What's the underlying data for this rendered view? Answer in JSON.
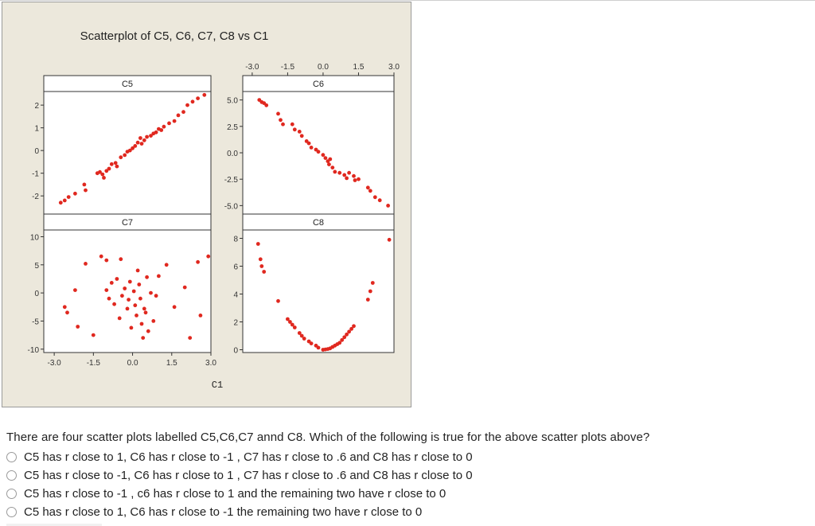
{
  "figure": {
    "title": "Scatterplot of C5, C6, C7, C8 vs C1",
    "x_axis_title": "C1"
  },
  "chart_data": {
    "type": "scatter",
    "title": "Scatterplot of C5, C6, C7, C8 vs C1",
    "xlabel": "C1",
    "x_ticks": [
      "-3.0",
      "-1.5",
      "0.0",
      "1.5",
      "3.0"
    ],
    "xlim": [
      -3.4,
      3.0
    ],
    "marker_color": "#e0281f",
    "panels": [
      {
        "name": "C5",
        "ylim": [
          -2.8,
          2.6
        ],
        "y_ticks": [
          -2,
          -1,
          0,
          1,
          2
        ],
        "y_tick_labels": [
          "-2",
          "-1",
          "0",
          "1",
          "2"
        ],
        "points": [
          [
            -2.75,
            -2.3
          ],
          [
            -2.6,
            -2.2
          ],
          [
            -2.45,
            -2.05
          ],
          [
            -2.2,
            -1.9
          ],
          [
            -1.85,
            -1.5
          ],
          [
            -1.8,
            -1.75
          ],
          [
            -1.35,
            -1.0
          ],
          [
            -1.25,
            -0.95
          ],
          [
            -1.15,
            -1.05
          ],
          [
            -1.1,
            -1.2
          ],
          [
            -1.0,
            -0.9
          ],
          [
            -0.9,
            -0.8
          ],
          [
            -0.8,
            -0.6
          ],
          [
            -0.65,
            -0.55
          ],
          [
            -0.6,
            -0.7
          ],
          [
            -0.45,
            -0.3
          ],
          [
            -0.3,
            -0.2
          ],
          [
            -0.2,
            -0.05
          ],
          [
            -0.1,
            0.0
          ],
          [
            0.0,
            0.1
          ],
          [
            0.1,
            0.2
          ],
          [
            0.2,
            0.35
          ],
          [
            0.3,
            0.55
          ],
          [
            0.35,
            0.3
          ],
          [
            0.45,
            0.45
          ],
          [
            0.55,
            0.6
          ],
          [
            0.7,
            0.65
          ],
          [
            0.8,
            0.75
          ],
          [
            0.9,
            0.8
          ],
          [
            1.0,
            0.95
          ],
          [
            1.1,
            0.9
          ],
          [
            1.2,
            1.05
          ],
          [
            1.4,
            1.2
          ],
          [
            1.6,
            1.3
          ],
          [
            1.75,
            1.55
          ],
          [
            1.95,
            1.7
          ],
          [
            2.1,
            2.0
          ],
          [
            2.3,
            2.15
          ],
          [
            2.5,
            2.3
          ],
          [
            2.75,
            2.45
          ]
        ]
      },
      {
        "name": "C6",
        "ylim": [
          -5.8,
          5.8
        ],
        "y_ticks": [
          -5,
          -2.5,
          0,
          2.5,
          5
        ],
        "y_tick_labels": [
          "-5.0",
          "-2.5",
          "0.0",
          "2.5",
          "5.0"
        ],
        "points": [
          [
            -2.7,
            5.0
          ],
          [
            -2.6,
            4.8
          ],
          [
            -2.5,
            4.7
          ],
          [
            -2.4,
            4.5
          ],
          [
            -1.9,
            3.7
          ],
          [
            -1.8,
            3.1
          ],
          [
            -1.7,
            2.7
          ],
          [
            -1.3,
            2.7
          ],
          [
            -1.2,
            2.2
          ],
          [
            -1.0,
            2.0
          ],
          [
            -0.9,
            1.6
          ],
          [
            -0.7,
            1.1
          ],
          [
            -0.6,
            0.9
          ],
          [
            -0.5,
            0.5
          ],
          [
            -0.3,
            0.3
          ],
          [
            -0.2,
            0.1
          ],
          [
            0.0,
            -0.2
          ],
          [
            0.1,
            -0.5
          ],
          [
            0.2,
            -0.8
          ],
          [
            0.25,
            -1.1
          ],
          [
            0.3,
            -0.6
          ],
          [
            0.4,
            -1.4
          ],
          [
            0.5,
            -1.8
          ],
          [
            0.7,
            -1.9
          ],
          [
            0.9,
            -2.1
          ],
          [
            1.0,
            -2.4
          ],
          [
            1.1,
            -1.9
          ],
          [
            1.3,
            -2.2
          ],
          [
            1.35,
            -2.6
          ],
          [
            1.5,
            -2.5
          ],
          [
            1.9,
            -3.3
          ],
          [
            2.0,
            -3.6
          ],
          [
            2.2,
            -4.2
          ],
          [
            2.4,
            -4.5
          ],
          [
            2.75,
            -5.0
          ]
        ]
      },
      {
        "name": "C7",
        "ylim": [
          -10.6,
          11.2
        ],
        "y_ticks": [
          -10,
          -5,
          0,
          5,
          10
        ],
        "y_tick_labels": [
          "-10",
          "-5",
          "0",
          "5",
          "10"
        ],
        "points": [
          [
            -2.6,
            -2.5
          ],
          [
            -2.5,
            -3.5
          ],
          [
            -2.2,
            0.5
          ],
          [
            -2.1,
            -6.0
          ],
          [
            -1.8,
            5.2
          ],
          [
            -1.5,
            -7.5
          ],
          [
            -1.2,
            6.5
          ],
          [
            -1.0,
            5.8
          ],
          [
            -1.0,
            0.5
          ],
          [
            -0.9,
            -1.0
          ],
          [
            -0.8,
            1.8
          ],
          [
            -0.7,
            -2.0
          ],
          [
            -0.6,
            2.5
          ],
          [
            -0.5,
            -4.5
          ],
          [
            -0.45,
            6.0
          ],
          [
            -0.4,
            -0.5
          ],
          [
            -0.3,
            0.8
          ],
          [
            -0.2,
            -2.8
          ],
          [
            -0.15,
            -1.2
          ],
          [
            -0.1,
            2.0
          ],
          [
            -0.05,
            -6.2
          ],
          [
            0.05,
            0.3
          ],
          [
            0.1,
            -2.2
          ],
          [
            0.15,
            -4.0
          ],
          [
            0.2,
            4.0
          ],
          [
            0.25,
            1.5
          ],
          [
            0.3,
            -1.0
          ],
          [
            0.35,
            -5.5
          ],
          [
            0.4,
            -8.0
          ],
          [
            0.45,
            -2.8
          ],
          [
            0.5,
            -3.5
          ],
          [
            0.55,
            2.8
          ],
          [
            0.6,
            -6.8
          ],
          [
            0.7,
            0.0
          ],
          [
            0.8,
            -5.0
          ],
          [
            0.9,
            -0.5
          ],
          [
            1.0,
            3.0
          ],
          [
            1.3,
            5.0
          ],
          [
            1.6,
            -2.5
          ],
          [
            2.0,
            1.0
          ],
          [
            2.2,
            -8.0
          ],
          [
            2.5,
            5.5
          ],
          [
            2.6,
            -4.0
          ],
          [
            2.9,
            6.5
          ]
        ]
      },
      {
        "name": "C8",
        "ylim": [
          -0.2,
          8.6
        ],
        "y_ticks": [
          0,
          2,
          4,
          6,
          8
        ],
        "y_tick_labels": [
          "0",
          "2",
          "4",
          "6",
          "8"
        ],
        "points": [
          [
            -2.75,
            7.6
          ],
          [
            -2.65,
            6.5
          ],
          [
            -2.6,
            6.0
          ],
          [
            -2.5,
            5.6
          ],
          [
            -1.9,
            3.5
          ],
          [
            -1.5,
            2.2
          ],
          [
            -1.4,
            2.0
          ],
          [
            -1.3,
            1.8
          ],
          [
            -1.2,
            1.6
          ],
          [
            -1.0,
            1.2
          ],
          [
            -0.9,
            1.0
          ],
          [
            -0.8,
            0.8
          ],
          [
            -0.6,
            0.6
          ],
          [
            -0.5,
            0.45
          ],
          [
            -0.3,
            0.3
          ],
          [
            -0.2,
            0.15
          ],
          [
            0.0,
            0.0
          ],
          [
            0.1,
            0.02
          ],
          [
            0.2,
            0.05
          ],
          [
            0.3,
            0.1
          ],
          [
            0.4,
            0.2
          ],
          [
            0.5,
            0.3
          ],
          [
            0.6,
            0.4
          ],
          [
            0.7,
            0.5
          ],
          [
            0.8,
            0.7
          ],
          [
            0.9,
            0.9
          ],
          [
            1.0,
            1.1
          ],
          [
            1.1,
            1.3
          ],
          [
            1.2,
            1.5
          ],
          [
            1.3,
            1.7
          ],
          [
            1.9,
            3.6
          ],
          [
            2.0,
            4.2
          ],
          [
            2.1,
            4.8
          ],
          [
            2.8,
            7.9
          ]
        ]
      }
    ]
  },
  "question": {
    "text": "There are four scatter plots labelled C5,C6,C7 annd C8. Which of the following is true for the above scatter plots above?",
    "options": [
      "C5 has r close to 1, C6 has r close to -1 , C7 has r close to .6 and C8 has r close to 0",
      "C5 has r close to -1, C6 has r close to 1 , C7 has r close to .6 and C8 has r close to 0",
      "C5 has r close to -1 , c6 has r close to 1 and the remaining two have r close to 0",
      "C5 has r close to 1, C6 has r close to -1 the remaining two have r close to 0"
    ]
  }
}
